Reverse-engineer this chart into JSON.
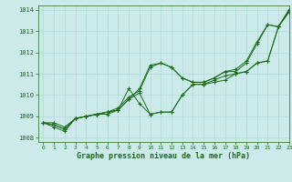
{
  "title": "Graphe pression niveau de la mer (hPa)",
  "xlim": [
    -0.5,
    23
  ],
  "ylim": [
    1007.8,
    1014.2
  ],
  "yticks": [
    1008,
    1009,
    1010,
    1011,
    1012,
    1013,
    1014
  ],
  "xticks": [
    0,
    1,
    2,
    3,
    4,
    5,
    6,
    7,
    8,
    9,
    10,
    11,
    12,
    13,
    14,
    15,
    16,
    17,
    18,
    19,
    20,
    21,
    22,
    23
  ],
  "bg_color": "#cceaea",
  "grid_color": "#b0d8d8",
  "line_color": "#1a6e1a",
  "lines": [
    [
      1008.7,
      1008.7,
      1008.5,
      1008.9,
      1009.0,
      1009.1,
      1009.2,
      1009.3,
      1009.8,
      1010.3,
      1011.4,
      1011.5,
      1011.3,
      1010.8,
      1010.6,
      1010.6,
      1010.8,
      1011.1,
      1011.2,
      1011.6,
      1012.5,
      1013.3,
      1013.2,
      1014.0
    ],
    [
      1008.7,
      1008.6,
      1008.4,
      1008.9,
      1009.0,
      1009.1,
      1009.2,
      1009.3,
      1009.8,
      1010.1,
      1009.1,
      1009.2,
      1009.2,
      1010.0,
      1010.5,
      1010.5,
      1010.7,
      1010.9,
      1011.0,
      1011.1,
      1011.5,
      1011.6,
      1013.2,
      1013.9
    ],
    [
      1008.7,
      1008.5,
      1008.3,
      1008.9,
      1009.0,
      1009.1,
      1009.1,
      1009.3,
      1010.3,
      1009.6,
      1009.1,
      1009.2,
      1009.2,
      1010.0,
      1010.5,
      1010.5,
      1010.6,
      1010.7,
      1011.0,
      1011.1,
      1011.5,
      1011.6,
      1013.2,
      1013.9
    ],
    [
      1008.7,
      1008.6,
      1008.4,
      1008.9,
      1009.0,
      1009.1,
      1009.2,
      1009.4,
      1009.9,
      1010.2,
      1011.3,
      1011.5,
      1011.3,
      1010.8,
      1010.6,
      1010.6,
      1010.8,
      1011.1,
      1011.1,
      1011.5,
      1012.4,
      1013.3,
      1013.2,
      1014.0
    ]
  ]
}
